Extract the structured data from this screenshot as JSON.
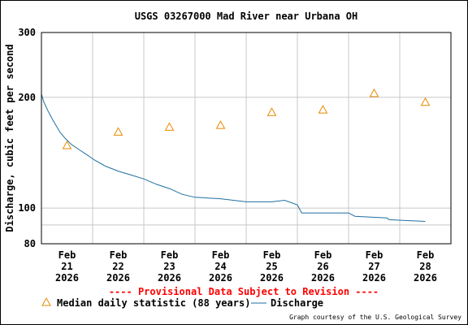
{
  "chart_data": {
    "type": "line",
    "title": "USGS 03267000 Mad River near Urbana OH",
    "ylabel": "Discharge, cubic feet per second",
    "y_scale": "log",
    "ylim": [
      80,
      300
    ],
    "y_ticks": [
      {
        "value": 80,
        "label": "80"
      },
      {
        "value": 100,
        "label": "100"
      },
      {
        "value": 200,
        "label": "200"
      },
      {
        "value": 300,
        "label": "300"
      }
    ],
    "y_minor_gridlines": [
      90
    ],
    "xlim": [
      "2026-02-20T12:00",
      "2026-02-28T12:00"
    ],
    "x_ticks": [
      {
        "value": "2026-02-21",
        "lines": [
          "Feb",
          "21",
          "2026"
        ]
      },
      {
        "value": "2026-02-22",
        "lines": [
          "Feb",
          "22",
          "2026"
        ]
      },
      {
        "value": "2026-02-23",
        "lines": [
          "Feb",
          "23",
          "2026"
        ]
      },
      {
        "value": "2026-02-24",
        "lines": [
          "Feb",
          "24",
          "2026"
        ]
      },
      {
        "value": "2026-02-25",
        "lines": [
          "Feb",
          "25",
          "2026"
        ]
      },
      {
        "value": "2026-02-26",
        "lines": [
          "Feb",
          "26",
          "2026"
        ]
      },
      {
        "value": "2026-02-27",
        "lines": [
          "Feb",
          "27",
          "2026"
        ]
      },
      {
        "value": "2026-02-28",
        "lines": [
          "Feb",
          "28",
          "2026"
        ]
      }
    ],
    "grid": true,
    "series": [
      {
        "name": "Discharge",
        "type": "line",
        "color": "#1f6fa0",
        "points": [
          [
            "2026-02-20T12:00",
            204
          ],
          [
            "2026-02-20T13:00",
            195
          ],
          [
            "2026-02-20T15:00",
            184
          ],
          [
            "2026-02-20T17:00",
            175
          ],
          [
            "2026-02-20T19:00",
            167
          ],
          [
            "2026-02-20T21:00",
            160
          ],
          [
            "2026-02-20T23:00",
            155
          ],
          [
            "2026-02-21T02:00",
            149
          ],
          [
            "2026-02-21T05:00",
            145
          ],
          [
            "2026-02-21T09:00",
            140
          ],
          [
            "2026-02-21T13:00",
            135
          ],
          [
            "2026-02-21T18:00",
            130
          ],
          [
            "2026-02-22T00:00",
            126
          ],
          [
            "2026-02-22T06:00",
            123
          ],
          [
            "2026-02-22T12:00",
            120
          ],
          [
            "2026-02-22T18:00",
            116
          ],
          [
            "2026-02-23T00:00",
            113
          ],
          [
            "2026-02-23T06:00",
            109
          ],
          [
            "2026-02-23T12:00",
            107
          ],
          [
            "2026-02-24T00:00",
            106
          ],
          [
            "2026-02-24T12:00",
            104
          ],
          [
            "2026-02-25T00:00",
            104
          ],
          [
            "2026-02-25T06:00",
            105
          ],
          [
            "2026-02-25T12:00",
            102
          ],
          [
            "2026-02-25T14:00",
            97
          ],
          [
            "2026-02-26T12:00",
            97
          ],
          [
            "2026-02-26T15:00",
            95
          ],
          [
            "2026-02-27T06:00",
            94
          ],
          [
            "2026-02-27T07:00",
            93
          ],
          [
            "2026-02-28T00:00",
            92
          ]
        ]
      },
      {
        "name": "Median daily statistic (88 years)",
        "type": "scatter",
        "marker": "triangle",
        "color": "#e88a00",
        "points": [
          [
            "2026-02-21T00:00",
            148
          ],
          [
            "2026-02-22T00:00",
            161
          ],
          [
            "2026-02-23T00:00",
            166
          ],
          [
            "2026-02-24T00:00",
            168
          ],
          [
            "2026-02-25T00:00",
            182
          ],
          [
            "2026-02-26T00:00",
            185
          ],
          [
            "2026-02-27T00:00",
            205
          ],
          [
            "2026-02-28T00:00",
            194
          ]
        ]
      }
    ],
    "annotation": "---- Provisional Data Subject to Revision ----",
    "annotation_color": "#ff0000",
    "legend_placement": "bottom-left",
    "credit": "Graph courtesy of the U.S. Geological Survey"
  }
}
